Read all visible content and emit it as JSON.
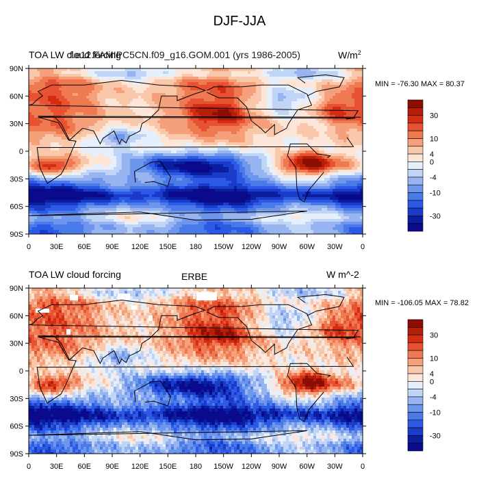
{
  "title": "DJF-JJA",
  "colors": {
    "palette": [
      "#0a0a8c",
      "#0a1ea0",
      "#1a3cc8",
      "#2c5ae6",
      "#4a7ae8",
      "#6e96ec",
      "#98b4f0",
      "#c0d4f6",
      "#e6f0fc",
      "#fde6d8",
      "#f9c8aa",
      "#f5a07a",
      "#ef7a52",
      "#e65232",
      "#d52d12",
      "#b51e08",
      "#8c0e02"
    ],
    "coast": "#000000"
  },
  "colorbar": {
    "labels": [
      "30",
      "10",
      "4",
      "0",
      "-4",
      "-10",
      "-30"
    ]
  },
  "chart_data": [
    {
      "type": "heatmap",
      "title_left": "TOA LW cloud forcing",
      "title_center": "f.e12.FAMIPC5CN.f09_g16.GOM.001 (yrs 1986-2005)",
      "title_right": "W/m",
      "title_right_sup": "2",
      "stats": "MIN = -76.30 MAX =  80.37",
      "xticks": [
        "0",
        "30E",
        "60E",
        "90E",
        "120E",
        "150E",
        "180",
        "150W",
        "120W",
        "90W",
        "60W",
        "30W",
        "0"
      ],
      "yticks": [
        "90N",
        "60N",
        "30N",
        "0",
        "30S",
        "60S",
        "90S"
      ]
    },
    {
      "type": "heatmap",
      "title_left": "TOA LW cloud forcing",
      "title_center": "ERBE",
      "title_right": "W m^-2",
      "title_right_sup": "",
      "stats": "MIN = -106.05 MAX =  78.82",
      "xticks": [
        "0",
        "30E",
        "60E",
        "90E",
        "120E",
        "150E",
        "180",
        "150W",
        "120W",
        "90W",
        "60W",
        "30W",
        "0"
      ],
      "yticks": [
        "90N",
        "60N",
        "30N",
        "0",
        "30S",
        "60S",
        "90S"
      ]
    }
  ]
}
